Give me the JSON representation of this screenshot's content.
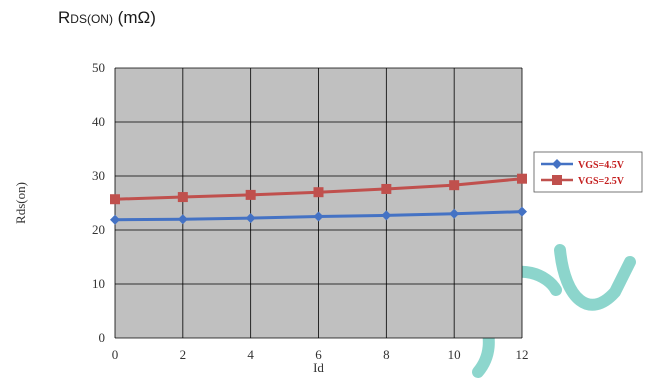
{
  "heading": {
    "main": "R",
    "sub": "DS(ON)",
    "unit": " (mΩ)"
  },
  "colors": {
    "plot_bg": "#c0c0c0",
    "grid": "#000000",
    "watermark": "#2fb4a4"
  },
  "chart_data": {
    "type": "line",
    "title": "",
    "xlabel": "Id",
    "ylabel": "Rds(on)",
    "xlim": [
      0,
      12
    ],
    "ylim": [
      0,
      50
    ],
    "xticks": [
      0,
      2,
      4,
      6,
      8,
      10,
      12
    ],
    "yticks": [
      0,
      10,
      20,
      30,
      40,
      50
    ],
    "grid": true,
    "legend": "right",
    "x": [
      0,
      2,
      4,
      6,
      8,
      10,
      12
    ],
    "series": [
      {
        "name": "VGS=4.5V",
        "color": "#4472c4",
        "marker": "diamond",
        "values": [
          21.9,
          22.0,
          22.2,
          22.5,
          22.7,
          23.0,
          23.4
        ]
      },
      {
        "name": "VGS=2.5V",
        "color": "#c0504d",
        "marker": "square",
        "values": [
          25.7,
          26.1,
          26.5,
          27.0,
          27.6,
          28.3,
          29.5
        ]
      }
    ]
  }
}
